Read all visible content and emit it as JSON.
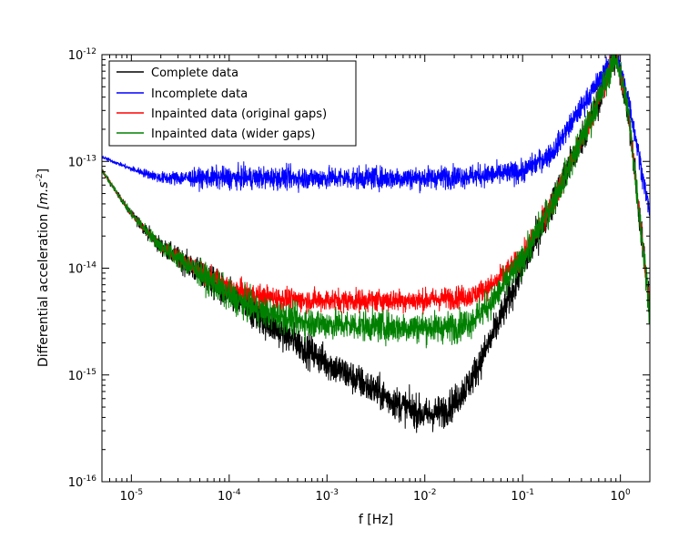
{
  "chart_data": {
    "type": "line",
    "title": "",
    "xlabel": "f [Hz]",
    "ylabel_main": "Differential acceleration ",
    "ylabel_units": "[m.s",
    "ylabel_units_exp": "-2",
    "ylabel_units_close": "]",
    "x_scale": "log",
    "y_scale": "log",
    "xlim": [
      5e-06,
      2
    ],
    "ylim": [
      1e-16,
      1e-12
    ],
    "x_tick_labels": [
      {
        "value": 1e-05,
        "base": "10",
        "exp": "-5"
      },
      {
        "value": 0.0001,
        "base": "10",
        "exp": "-4"
      },
      {
        "value": 0.001,
        "base": "10",
        "exp": "-3"
      },
      {
        "value": 0.01,
        "base": "10",
        "exp": "-2"
      },
      {
        "value": 0.1,
        "base": "10",
        "exp": "-1"
      },
      {
        "value": 1,
        "base": "10",
        "exp": "0"
      }
    ],
    "y_tick_labels": [
      {
        "value": 1e-16,
        "base": "10",
        "exp": "-16"
      },
      {
        "value": 1e-15,
        "base": "10",
        "exp": "-15"
      },
      {
        "value": 1e-14,
        "base": "10",
        "exp": "-14"
      },
      {
        "value": 1e-13,
        "base": "10",
        "exp": "-13"
      },
      {
        "value": 1e-12,
        "base": "10",
        "exp": "-12"
      }
    ],
    "grid": false,
    "legend_position": "top-left",
    "series": [
      {
        "name": "Complete data",
        "color": "#000000",
        "noise_dex": 0.12,
        "points": [
          [
            5e-06,
            8.2e-14
          ],
          [
            1e-05,
            3.2e-14
          ],
          [
            2e-05,
            1.6e-14
          ],
          [
            5e-05,
            9e-15
          ],
          [
            0.0001,
            5.5e-15
          ],
          [
            0.0002,
            3.5e-15
          ],
          [
            0.0005,
            2e-15
          ],
          [
            0.001,
            1.3e-15
          ],
          [
            0.002,
            9e-16
          ],
          [
            0.005,
            5.5e-16
          ],
          [
            0.01,
            4.2e-16
          ],
          [
            0.015,
            4.5e-16
          ],
          [
            0.02,
            5.5e-16
          ],
          [
            0.03,
            9e-16
          ],
          [
            0.05,
            2.4e-15
          ],
          [
            0.1,
            1e-14
          ],
          [
            0.2,
            4e-14
          ],
          [
            0.5,
            2.5e-13
          ],
          [
            0.9,
            1e-12
          ],
          [
            1.2,
            3e-13
          ],
          [
            2,
            4e-15
          ]
        ]
      },
      {
        "name": "Incomplete data",
        "color": "#0000ff",
        "noise_dex": 0.08,
        "points": [
          [
            5e-06,
            1.1e-13
          ],
          [
            1e-05,
            8.5e-14
          ],
          [
            2e-05,
            7e-14
          ],
          [
            5e-05,
            7e-14
          ],
          [
            0.0001,
            7e-14
          ],
          [
            0.001,
            7e-14
          ],
          [
            0.01,
            7e-14
          ],
          [
            0.05,
            7.5e-14
          ],
          [
            0.1,
            8e-14
          ],
          [
            0.2,
            1.2e-13
          ],
          [
            0.4,
            3.2e-13
          ],
          [
            0.9,
            1e-12
          ],
          [
            1.2,
            4e-13
          ],
          [
            2,
            3.2e-14
          ]
        ]
      },
      {
        "name": "Inpainted data (original gaps)",
        "color": "#ff0000",
        "noise_dex": 0.08,
        "points": [
          [
            5e-06,
            8.2e-14
          ],
          [
            1e-05,
            3.2e-14
          ],
          [
            2e-05,
            1.6e-14
          ],
          [
            5e-05,
            9.5e-15
          ],
          [
            0.0001,
            6.5e-15
          ],
          [
            0.0002,
            5.5e-15
          ],
          [
            0.0005,
            5e-15
          ],
          [
            0.001,
            5e-15
          ],
          [
            0.01,
            5e-15
          ],
          [
            0.03,
            5.5e-15
          ],
          [
            0.05,
            7e-15
          ],
          [
            0.1,
            1.3e-14
          ],
          [
            0.2,
            4e-14
          ],
          [
            0.5,
            2.5e-13
          ],
          [
            0.9,
            1e-12
          ],
          [
            1.2,
            3e-13
          ],
          [
            2,
            4e-15
          ]
        ]
      },
      {
        "name": "Inpainted data (wider gaps)",
        "color": "#008000",
        "noise_dex": 0.11,
        "points": [
          [
            5e-06,
            8.2e-14
          ],
          [
            1e-05,
            3.2e-14
          ],
          [
            2e-05,
            1.6e-14
          ],
          [
            5e-05,
            9e-15
          ],
          [
            0.0001,
            5.5e-15
          ],
          [
            0.0002,
            4e-15
          ],
          [
            0.0005,
            3.2e-15
          ],
          [
            0.001,
            3e-15
          ],
          [
            0.005,
            2.8e-15
          ],
          [
            0.02,
            2.8e-15
          ],
          [
            0.03,
            3.2e-15
          ],
          [
            0.05,
            5e-15
          ],
          [
            0.1,
            1.2e-14
          ],
          [
            0.2,
            4e-14
          ],
          [
            0.5,
            2.5e-13
          ],
          [
            0.9,
            1e-12
          ],
          [
            1.2,
            3e-13
          ],
          [
            2,
            4e-15
          ]
        ]
      }
    ]
  }
}
